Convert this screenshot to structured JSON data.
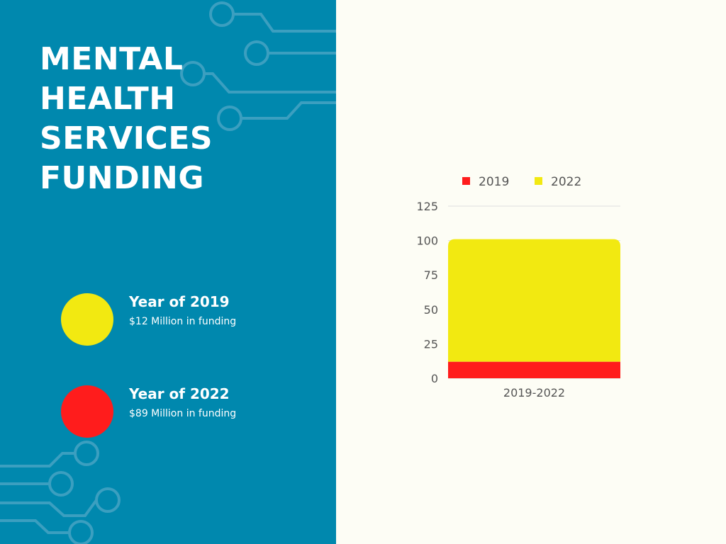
{
  "title_lines": [
    "MENTAL",
    "HEALTH",
    "SERVICES",
    "FUNDING"
  ],
  "info": [
    {
      "year": "Year of 2019",
      "desc": "$12 Million in funding",
      "color": "#f2e911"
    },
    {
      "year": "Year of 2022",
      "desc": "$89 Million in funding",
      "color": "#ff1c1c"
    }
  ],
  "colors": {
    "left_bg": "#0088ae",
    "right_bg": "#fdfdf5",
    "circuit": "#3b9fc0"
  },
  "chart_data": {
    "type": "bar",
    "stacked": true,
    "categories": [
      "2019-2022"
    ],
    "series": [
      {
        "name": "2019",
        "values": [
          12
        ],
        "color": "#ff1c1c"
      },
      {
        "name": "2022",
        "values": [
          89
        ],
        "color": "#f2e911"
      }
    ],
    "yticks": [
      0,
      25,
      50,
      75,
      100,
      125
    ],
    "ylim": [
      0,
      125
    ],
    "grid": true,
    "legend": "top"
  }
}
